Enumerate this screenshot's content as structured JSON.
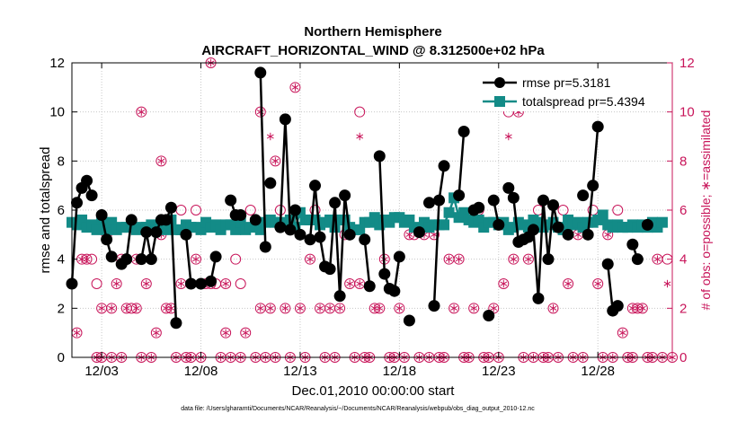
{
  "colors": {
    "rmse": "#000000",
    "spread": "#138b87",
    "obs": "#c8155a",
    "grid": "#c8c8c8"
  },
  "chart_data": {
    "type": "line",
    "title_line1": "Northern Hemisphere",
    "title_line2": "AIRCRAFT_HORIZONTAL_WIND @ 8.312500e+02 hPa",
    "ylabel": "rmse and totalspread",
    "ylabel_right": "# of obs: o=possible; ∗=assimilated",
    "xlabel": "Dec.01,2010 00:00:00 start",
    "footnote": "data file: /Users/gharamti/Documents/NCAR/Reanalysis/~/Documents/NCAR/Reanalysis/webpub/obs_diag_output_2010-12.nc",
    "xlim": [
      1.5,
      31.75
    ],
    "ylim": [
      0,
      12
    ],
    "ylim_right": [
      0,
      12
    ],
    "xtick_values": [
      3,
      8,
      13,
      18,
      23,
      28
    ],
    "xtick_labels": [
      "12/03",
      "12/08",
      "12/13",
      "12/18",
      "12/23",
      "12/28"
    ],
    "yticks": [
      "0",
      "2",
      "4",
      "6",
      "8",
      "10",
      "12"
    ],
    "yticks_right": [
      "0",
      "2",
      "4",
      "6",
      "8",
      "10",
      "12"
    ],
    "legend": [
      {
        "name": "rmse",
        "label": "rmse pr=5.3181"
      },
      {
        "name": "totalspread",
        "label": "totalspread pr=5.4394"
      }
    ],
    "x_start": 1.5,
    "x_step": 0.25,
    "series": [
      {
        "name": "rmse",
        "values": [
          3.0,
          6.3,
          6.9,
          7.2,
          6.6,
          null,
          5.8,
          4.8,
          4.1,
          null,
          3.8,
          4.0,
          5.6,
          null,
          4.0,
          5.1,
          4.0,
          5.1,
          5.6,
          5.6,
          6.1,
          1.4,
          null,
          5.0,
          3.0,
          null,
          3.0,
          null,
          3.1,
          4.1,
          null,
          null,
          6.4,
          5.8,
          5.8,
          null,
          null,
          5.6,
          11.6,
          4.5,
          7.1,
          null,
          5.3,
          9.7,
          5.2,
          6.0,
          5.0,
          null,
          4.8,
          7.0,
          4.9,
          3.7,
          3.6,
          6.3,
          2.5,
          6.6,
          5.0,
          null,
          null,
          4.8,
          2.9,
          null,
          8.2,
          3.4,
          2.8,
          2.7,
          4.1,
          null,
          1.5,
          null,
          5.1,
          null,
          6.3,
          2.1,
          6.4,
          7.8,
          null,
          null,
          6.6,
          9.2,
          null,
          6.0,
          6.1,
          null,
          1.7,
          6.4,
          5.4,
          null,
          6.9,
          6.5,
          4.7,
          4.8,
          4.9,
          5.2,
          2.4,
          6.4,
          4.0,
          6.2,
          5.3,
          null,
          5.0,
          null,
          null,
          6.6,
          5.0,
          7.0,
          9.4,
          null,
          3.8,
          1.9,
          2.1,
          null,
          null,
          4.6,
          4.0,
          null,
          5.4
        ],
        "segment_breaks": [
          5,
          9,
          13,
          22,
          25,
          29,
          30,
          35,
          37,
          39,
          41,
          47,
          56,
          61,
          67,
          68,
          70,
          72,
          76,
          79,
          81,
          84,
          88,
          99,
          101,
          103,
          107,
          112,
          115
        ]
      },
      {
        "name": "totalspread",
        "values": [
          5.5,
          5.4,
          5.6,
          5.3,
          5.4,
          5.2,
          5.6,
          5.2,
          5.5,
          5.2,
          5.3,
          5.3,
          5.4,
          5.2,
          5.3,
          5.3,
          5.4,
          5.2,
          5.5,
          5.2,
          5.6,
          5.2,
          5.2,
          5.4,
          5.3,
          5.3,
          5.2,
          5.5,
          5.3,
          5.4,
          5.2,
          5.4,
          5.4,
          5.2,
          5.5,
          5.2,
          5.3,
          5.4,
          5.2,
          5.5,
          5.6,
          5.5,
          5.5,
          5.4,
          5.6,
          5.3,
          5.9,
          5.6,
          5.6,
          5.6,
          5.4,
          5.5,
          5.6,
          5.3,
          5.6,
          5.6,
          5.3,
          5.2,
          5.2,
          5.5,
          5.5,
          5.7,
          5.4,
          5.6,
          5.5,
          5.7,
          5.7,
          5.5,
          5.6,
          5.3,
          5.2,
          5.5,
          5.3,
          5.4,
          5.4,
          5.4,
          5.9,
          6.5,
          5.7,
          5.9,
          5.6,
          5.5,
          5.6,
          5.3,
          5.5,
          5.5,
          5.4,
          5.5,
          5.2,
          5.3,
          5.5,
          5.4,
          5.3,
          5.6,
          5.5,
          5.3,
          5.4,
          5.5,
          5.3,
          5.2,
          5.6,
          5.4,
          5.5,
          5.3,
          5.5,
          5.5,
          5.6,
          5.8,
          5.4,
          5.3,
          5.4,
          5.3,
          5.3,
          5.4,
          5.3,
          5.4,
          5.3,
          5.5,
          5.3,
          5.5
        ]
      }
    ],
    "obs_possible": [
      [
        1.5,
        3
      ],
      [
        1.75,
        1
      ],
      [
        2.0,
        4
      ],
      [
        2.25,
        4
      ],
      [
        2.5,
        4
      ],
      [
        2.75,
        0
      ],
      [
        3.0,
        0
      ],
      [
        2.75,
        3
      ],
      [
        3.0,
        2
      ],
      [
        3.25,
        5
      ],
      [
        3.5,
        0
      ],
      [
        3.5,
        2
      ],
      [
        3.75,
        3
      ],
      [
        4.0,
        4
      ],
      [
        4.0,
        0
      ],
      [
        4.25,
        2
      ],
      [
        4.5,
        2
      ],
      [
        4.75,
        2
      ],
      [
        4.75,
        4
      ],
      [
        5.0,
        0
      ],
      [
        5.0,
        10
      ],
      [
        5.25,
        3
      ],
      [
        5.5,
        0
      ],
      [
        5.75,
        1
      ],
      [
        6.0,
        8
      ],
      [
        6.0,
        5
      ],
      [
        6.25,
        2
      ],
      [
        6.5,
        2
      ],
      [
        6.75,
        0
      ],
      [
        7.0,
        6
      ],
      [
        7.0,
        3
      ],
      [
        7.25,
        0
      ],
      [
        7.5,
        0
      ],
      [
        7.75,
        4
      ],
      [
        7.75,
        6
      ],
      [
        8.0,
        0
      ],
      [
        8.25,
        3
      ],
      [
        8.5,
        3
      ],
      [
        8.5,
        12
      ],
      [
        8.75,
        3
      ],
      [
        9.0,
        0
      ],
      [
        9.25,
        1
      ],
      [
        9.25,
        3
      ],
      [
        9.5,
        0
      ],
      [
        9.75,
        4
      ],
      [
        10.0,
        0
      ],
      [
        10.0,
        3
      ],
      [
        10.25,
        1
      ],
      [
        10.5,
        6
      ],
      [
        10.75,
        0
      ],
      [
        11.0,
        10
      ],
      [
        11.0,
        2
      ],
      [
        11.25,
        0
      ],
      [
        11.5,
        2
      ],
      [
        11.75,
        8
      ],
      [
        11.75,
        0
      ],
      [
        12.0,
        6
      ],
      [
        12.25,
        2
      ],
      [
        12.5,
        0
      ],
      [
        12.75,
        11
      ],
      [
        13.0,
        2
      ],
      [
        13.25,
        0
      ],
      [
        13.5,
        4
      ],
      [
        13.75,
        6
      ],
      [
        14.0,
        2
      ],
      [
        14.25,
        0
      ],
      [
        14.5,
        2
      ],
      [
        14.75,
        0
      ],
      [
        15.0,
        2
      ],
      [
        15.25,
        5
      ],
      [
        15.5,
        3
      ],
      [
        15.75,
        0
      ],
      [
        16.0,
        10
      ],
      [
        16.0,
        3
      ],
      [
        16.25,
        0
      ],
      [
        16.5,
        0
      ],
      [
        16.75,
        2
      ],
      [
        17.0,
        2
      ],
      [
        17.25,
        4
      ],
      [
        17.5,
        0
      ],
      [
        17.75,
        0
      ],
      [
        18.0,
        2
      ],
      [
        18.25,
        0
      ],
      [
        18.5,
        5
      ],
      [
        18.75,
        5
      ],
      [
        19.0,
        0
      ],
      [
        19.25,
        5
      ],
      [
        19.5,
        0
      ],
      [
        19.75,
        5
      ],
      [
        20.0,
        0
      ],
      [
        20.25,
        0
      ],
      [
        20.5,
        4
      ],
      [
        20.75,
        2
      ],
      [
        21.0,
        4
      ],
      [
        21.25,
        0
      ],
      [
        21.5,
        0
      ],
      [
        21.75,
        2
      ],
      [
        22.0,
        6
      ],
      [
        22.25,
        0
      ],
      [
        22.5,
        0
      ],
      [
        22.75,
        2
      ],
      [
        23.0,
        0
      ],
      [
        23.25,
        3
      ],
      [
        23.5,
        10
      ],
      [
        23.75,
        4
      ],
      [
        24.0,
        10
      ],
      [
        24.25,
        0
      ],
      [
        24.5,
        4
      ],
      [
        24.75,
        0
      ],
      [
        25.0,
        6
      ],
      [
        25.25,
        0
      ],
      [
        25.5,
        0
      ],
      [
        25.75,
        2
      ],
      [
        26.0,
        0
      ],
      [
        26.25,
        6
      ],
      [
        26.5,
        3
      ],
      [
        26.75,
        0
      ],
      [
        27.0,
        5
      ],
      [
        27.25,
        0
      ],
      [
        27.5,
        5
      ],
      [
        27.75,
        6
      ],
      [
        28.0,
        3
      ],
      [
        28.25,
        0
      ],
      [
        28.5,
        5
      ],
      [
        28.75,
        0
      ],
      [
        29.0,
        6
      ],
      [
        29.25,
        1
      ],
      [
        29.5,
        0
      ],
      [
        29.75,
        0
      ],
      [
        29.75,
        2
      ],
      [
        30.0,
        2
      ],
      [
        30.25,
        2
      ],
      [
        30.5,
        0
      ],
      [
        30.75,
        0
      ],
      [
        31.0,
        4
      ],
      [
        31.25,
        0
      ],
      [
        31.5,
        4
      ],
      [
        31.75,
        0
      ]
    ],
    "obs_assimilated": [
      [
        1.5,
        3
      ],
      [
        1.75,
        1
      ],
      [
        2.0,
        4
      ],
      [
        2.25,
        4
      ],
      [
        2.75,
        0
      ],
      [
        3.0,
        0
      ],
      [
        3.0,
        2
      ],
      [
        3.25,
        5
      ],
      [
        3.5,
        0
      ],
      [
        3.5,
        2
      ],
      [
        3.75,
        3
      ],
      [
        4.0,
        4
      ],
      [
        4.0,
        0
      ],
      [
        4.25,
        2
      ],
      [
        4.75,
        2
      ],
      [
        4.75,
        4
      ],
      [
        5.0,
        0
      ],
      [
        5.0,
        10
      ],
      [
        5.25,
        3
      ],
      [
        5.5,
        0
      ],
      [
        5.75,
        1
      ],
      [
        6.0,
        8
      ],
      [
        6.0,
        5
      ],
      [
        6.25,
        2
      ],
      [
        6.5,
        2
      ],
      [
        6.75,
        0
      ],
      [
        7.0,
        3
      ],
      [
        7.25,
        0
      ],
      [
        7.5,
        0
      ],
      [
        7.75,
        4
      ],
      [
        8.0,
        0
      ],
      [
        8.25,
        3
      ],
      [
        8.5,
        12
      ],
      [
        9.0,
        0
      ],
      [
        9.25,
        1
      ],
      [
        9.25,
        3
      ],
      [
        9.5,
        0
      ],
      [
        10.0,
        0
      ],
      [
        10.25,
        1
      ],
      [
        10.75,
        0
      ],
      [
        11.0,
        10
      ],
      [
        11.0,
        2
      ],
      [
        11.25,
        0
      ],
      [
        11.5,
        9
      ],
      [
        11.5,
        2
      ],
      [
        11.75,
        8
      ],
      [
        11.75,
        0
      ],
      [
        12.25,
        2
      ],
      [
        12.5,
        0
      ],
      [
        12.75,
        11
      ],
      [
        13.0,
        2
      ],
      [
        13.25,
        0
      ],
      [
        13.5,
        4
      ],
      [
        14.0,
        2
      ],
      [
        14.25,
        0
      ],
      [
        14.5,
        2
      ],
      [
        14.75,
        0
      ],
      [
        15.0,
        2
      ],
      [
        15.25,
        5
      ],
      [
        15.5,
        3
      ],
      [
        15.75,
        0
      ],
      [
        16.0,
        9
      ],
      [
        16.0,
        3
      ],
      [
        16.25,
        0
      ],
      [
        16.5,
        0
      ],
      [
        16.75,
        2
      ],
      [
        17.0,
        2
      ],
      [
        17.25,
        4
      ],
      [
        17.5,
        0
      ],
      [
        17.75,
        0
      ],
      [
        18.0,
        2
      ],
      [
        18.25,
        0
      ],
      [
        18.5,
        5
      ],
      [
        19.0,
        0
      ],
      [
        19.25,
        5
      ],
      [
        19.5,
        0
      ],
      [
        19.75,
        5
      ],
      [
        20.0,
        0
      ],
      [
        20.25,
        0
      ],
      [
        20.5,
        4
      ],
      [
        20.75,
        2
      ],
      [
        21.0,
        4
      ],
      [
        21.25,
        0
      ],
      [
        21.5,
        0
      ],
      [
        21.75,
        2
      ],
      [
        22.25,
        0
      ],
      [
        22.5,
        0
      ],
      [
        22.75,
        2
      ],
      [
        23.0,
        0
      ],
      [
        23.25,
        3
      ],
      [
        23.5,
        9
      ],
      [
        23.75,
        4
      ],
      [
        24.0,
        10
      ],
      [
        24.25,
        0
      ],
      [
        24.5,
        4
      ],
      [
        24.75,
        0
      ],
      [
        25.25,
        0
      ],
      [
        25.5,
        0
      ],
      [
        25.75,
        2
      ],
      [
        26.0,
        0
      ],
      [
        26.5,
        3
      ],
      [
        26.75,
        0
      ],
      [
        27.0,
        5
      ],
      [
        27.25,
        0
      ],
      [
        27.5,
        5
      ],
      [
        28.0,
        3
      ],
      [
        28.25,
        0
      ],
      [
        28.5,
        5
      ],
      [
        28.75,
        0
      ],
      [
        29.25,
        1
      ],
      [
        29.5,
        0
      ],
      [
        29.75,
        0
      ],
      [
        29.75,
        2
      ],
      [
        30.0,
        2
      ],
      [
        30.25,
        2
      ],
      [
        30.5,
        0
      ],
      [
        30.75,
        0
      ],
      [
        31.0,
        4
      ],
      [
        31.25,
        0
      ],
      [
        31.5,
        3
      ],
      [
        31.75,
        0
      ]
    ]
  }
}
